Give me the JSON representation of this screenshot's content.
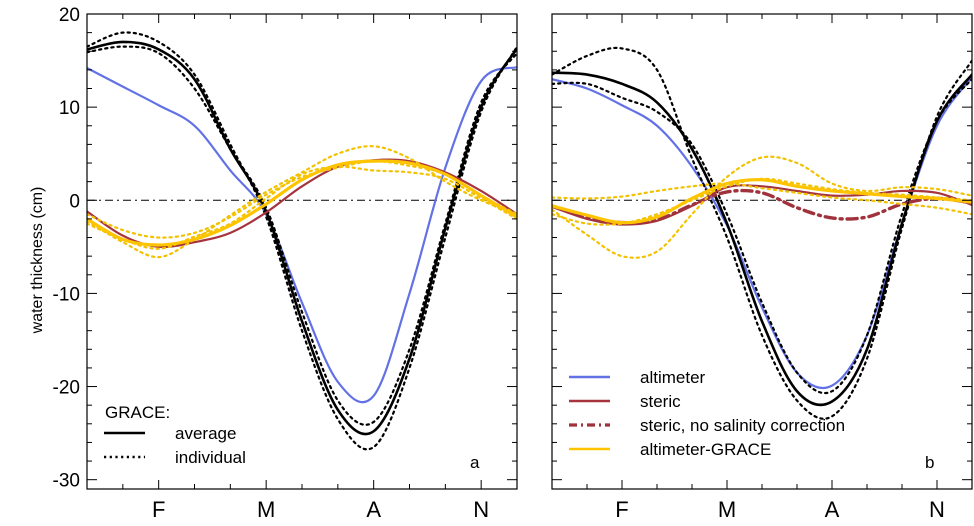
{
  "chart_data": {
    "type": "line",
    "ylabel": "water thickness (cm)",
    "ylim": [
      -31,
      20
    ],
    "yticks": [
      20,
      10,
      0,
      -10,
      -20,
      -30
    ],
    "ytick_labels": [
      "20",
      "10",
      "0",
      "-10",
      "-20",
      "-30"
    ],
    "xlim": [
      0,
      12
    ],
    "xticks": [
      2,
      5,
      8,
      11
    ],
    "xtick_labels": [
      "F",
      "M",
      "A",
      "N"
    ],
    "zero_line": true,
    "colors": {
      "black": "#000000",
      "altimeter": "#6272e6",
      "steric": "#a5343f",
      "steric_no_salinity": "#a0323c",
      "altimeter_grace": "#ffc400",
      "altimeter_grace_individual": "#f2c200"
    },
    "panels": [
      {
        "id": "a",
        "panel_label": "a",
        "legend_title": "GRACE:",
        "legend": [
          {
            "label": "average",
            "style": "solid",
            "color": "black"
          },
          {
            "label": "individual",
            "style": "dotted",
            "color": "black"
          }
        ],
        "series": [
          {
            "color": "altimeter",
            "style": "solid",
            "width": 2.2,
            "x": [
              0,
              1,
              2,
              3,
              4,
              5,
              6,
              7,
              8,
              9,
              10,
              11,
              12
            ],
            "y": [
              14.2,
              12.2,
              10.2,
              8,
              3.2,
              -1.5,
              -11,
              -19.5,
              -21,
              -10,
              3.5,
              12.8,
              14.3
            ]
          },
          {
            "color": "black",
            "style": "dotted",
            "width": 2.2,
            "x": [
              0,
              1,
              2,
              3,
              4,
              5,
              6,
              7,
              8,
              9,
              10,
              11,
              12
            ],
            "y": [
              16.5,
              18,
              17,
              13.5,
              6,
              -1.8,
              -14,
              -23.5,
              -26.5,
              -18,
              -4,
              9.5,
              16.5
            ]
          },
          {
            "color": "black",
            "style": "dotted",
            "width": 2.2,
            "x": [
              0,
              1,
              2,
              3,
              4,
              5,
              6,
              7,
              8,
              9,
              10,
              11,
              12
            ],
            "y": [
              15.9,
              16.5,
              15.8,
              12,
              5.5,
              -0.8,
              -12,
              -21.5,
              -23.8,
              -16,
              -2.5,
              10.5,
              15.8
            ]
          },
          {
            "color": "black",
            "style": "solid",
            "width": 2.6,
            "x": [
              0,
              1,
              2,
              3,
              4,
              5,
              6,
              7,
              8,
              9,
              10,
              11,
              12
            ],
            "y": [
              16.2,
              17,
              16.2,
              13,
              5.5,
              -1.2,
              -13,
              -22.5,
              -24.8,
              -17,
              -3,
              10,
              16.3
            ]
          },
          {
            "color": "steric",
            "style": "solid",
            "width": 2.2,
            "x": [
              0,
              1,
              2,
              3,
              4,
              5,
              6,
              7,
              8,
              9,
              10,
              11,
              12
            ],
            "y": [
              -1.2,
              -3.8,
              -5,
              -4.5,
              -3.5,
              -1.3,
              1.5,
              3.6,
              4.3,
              4.2,
              3,
              1,
              -1.5
            ]
          },
          {
            "color": "altimeter_grace_individual",
            "style": "dotted",
            "width": 2.2,
            "x": [
              0,
              1,
              2,
              3,
              4,
              5,
              6,
              7,
              8,
              9,
              10,
              11,
              12
            ],
            "y": [
              -2.2,
              -4.5,
              -6.1,
              -4.2,
              -1.6,
              0.9,
              3,
              5,
              5.8,
              4.5,
              2,
              0,
              -1.5
            ]
          },
          {
            "color": "altimeter_grace_individual",
            "style": "dotted",
            "width": 2.2,
            "x": [
              0,
              1,
              2,
              3,
              4,
              5,
              6,
              7,
              8,
              9,
              10,
              11,
              12
            ],
            "y": [
              -1.5,
              -3.2,
              -4,
              -3.5,
              -1.8,
              0.6,
              2.5,
              3.5,
              4.2,
              3.7,
              2.8,
              0.5,
              -1.5
            ]
          },
          {
            "color": "altimeter_grace_individual",
            "style": "dotted",
            "width": 2.2,
            "x": [
              0,
              1,
              2,
              3,
              4,
              5,
              6,
              7,
              8,
              9,
              10,
              11,
              12
            ],
            "y": [
              -2.5,
              -4.2,
              -5.2,
              -3.9,
              -2.5,
              0.2,
              2.8,
              3.6,
              3.2,
              3,
              2.3,
              0.2,
              -2
            ]
          },
          {
            "color": "altimeter_grace",
            "style": "solid",
            "width": 3.2,
            "x": [
              0,
              1,
              2,
              3,
              4,
              5,
              6,
              7,
              8,
              9,
              10,
              11,
              12
            ],
            "y": [
              -2,
              -4.2,
              -4.8,
              -4.2,
              -2.7,
              -0.4,
              2.2,
              3.8,
              4.2,
              4,
              2.8,
              0.5,
              -1.8
            ]
          }
        ]
      },
      {
        "id": "b",
        "panel_label": "b",
        "legend_title": "",
        "legend": [
          {
            "label": "altimeter",
            "style": "solid",
            "color": "altimeter"
          },
          {
            "label": "steric",
            "style": "solid",
            "color": "steric"
          },
          {
            "label": "steric, no salinity correction",
            "style": "dashdot",
            "color": "steric_no_salinity"
          },
          {
            "label": "altimeter-GRACE",
            "style": "solid",
            "color": "altimeter_grace"
          }
        ],
        "series": [
          {
            "color": "altimeter",
            "style": "solid",
            "width": 2.2,
            "x": [
              0,
              1,
              2,
              3,
              4,
              5,
              6,
              7,
              8,
              9,
              10,
              11,
              12
            ],
            "y": [
              13,
              12,
              10.2,
              8,
              3.6,
              -2.7,
              -11.5,
              -18.5,
              -19.9,
              -14.5,
              -2.5,
              8,
              13.2
            ]
          },
          {
            "color": "black",
            "style": "dotted",
            "width": 2.2,
            "x": [
              0,
              1,
              2,
              3,
              4,
              5,
              6,
              7,
              8,
              9,
              10,
              11,
              12
            ],
            "y": [
              13.5,
              15.5,
              16.3,
              14,
              4.5,
              -4,
              -14.5,
              -21.5,
              -23.2,
              -17,
              -3,
              9,
              15
            ]
          },
          {
            "color": "black",
            "style": "dotted",
            "width": 2.2,
            "x": [
              0,
              1,
              2,
              3,
              4,
              5,
              6,
              7,
              8,
              9,
              10,
              11,
              12
            ],
            "y": [
              12.5,
              12.5,
              11,
              9.5,
              6,
              -1.5,
              -11,
              -18.5,
              -20.5,
              -14.5,
              -1.5,
              8.5,
              13
            ]
          },
          {
            "color": "black",
            "style": "solid",
            "width": 2.6,
            "x": [
              0,
              1,
              2,
              3,
              4,
              5,
              6,
              7,
              8,
              9,
              10,
              11,
              12
            ],
            "y": [
              13.7,
              13.5,
              12.5,
              10.5,
              5.5,
              -2.5,
              -13,
              -20.5,
              -21.6,
              -16,
              -2.5,
              8.5,
              13.5
            ]
          },
          {
            "color": "steric",
            "style": "solid",
            "width": 2.2,
            "x": [
              0,
              1,
              2,
              3,
              4,
              5,
              6,
              7,
              8,
              9,
              10,
              11,
              12
            ],
            "y": [
              -0.7,
              -2,
              -2.6,
              -2.2,
              -0.6,
              1.4,
              1.5,
              1,
              0.5,
              0.6,
              1,
              0.8,
              -0.5
            ]
          },
          {
            "color": "steric_no_salinity",
            "style": "dashdot",
            "width": 3.4,
            "x": [
              0,
              1,
              2,
              3,
              4,
              5,
              6,
              7,
              8,
              9,
              10,
              11,
              12
            ],
            "y": [
              -0.6,
              -1.8,
              -2.4,
              -2.1,
              -0.5,
              0.9,
              0.8,
              -0.8,
              -1.9,
              -1.8,
              -0.4,
              0.2,
              -0.3
            ]
          },
          {
            "color": "altimeter_grace_individual",
            "style": "dotted",
            "width": 2.2,
            "x": [
              0,
              1,
              2,
              3,
              4,
              5,
              6,
              7,
              8,
              9,
              10,
              11,
              12
            ],
            "y": [
              -1,
              -3.7,
              -6,
              -5.5,
              -1.5,
              2.5,
              4.6,
              4,
              1.8,
              1,
              1.4,
              1.2,
              0.5
            ]
          },
          {
            "color": "altimeter_grace_individual",
            "style": "dotted",
            "width": 2.2,
            "x": [
              0,
              1,
              2,
              3,
              4,
              5,
              6,
              7,
              8,
              9,
              10,
              11,
              12
            ],
            "y": [
              -1.5,
              -2.5,
              -2.5,
              -1.5,
              0,
              1.5,
              2.3,
              1.8,
              1.2,
              0.8,
              0.6,
              0.3,
              0
            ]
          },
          {
            "color": "altimeter_grace_individual",
            "style": "dotted",
            "width": 2.2,
            "x": [
              0,
              1,
              2,
              3,
              4,
              5,
              6,
              7,
              8,
              9,
              10,
              11,
              12
            ],
            "y": [
              0.3,
              0.2,
              0.4,
              1,
              1.5,
              1.8,
              1.3,
              0.8,
              0.3,
              0,
              -0.4,
              -0.8,
              -1.5
            ]
          },
          {
            "color": "altimeter_grace",
            "style": "solid",
            "width": 3.2,
            "x": [
              0,
              1,
              2,
              3,
              4,
              5,
              6,
              7,
              8,
              9,
              10,
              11,
              12
            ],
            "y": [
              -0.6,
              -1.6,
              -2.4,
              -1.8,
              0.2,
              1.8,
              2.2,
              1.5,
              1,
              0.7,
              0.4,
              0.2,
              -0.2
            ]
          }
        ]
      }
    ]
  }
}
